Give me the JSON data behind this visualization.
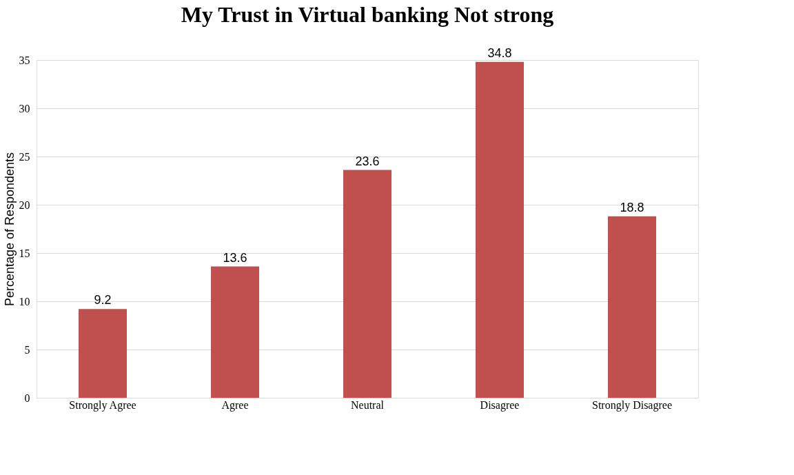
{
  "chart_data": {
    "type": "bar",
    "title": "My Trust in Virtual banking Not strong",
    "ylabel": "Percentage of Respondents",
    "categories": [
      "Strongly Agree",
      "Agree",
      "Neutral",
      "Disagree",
      "Strongly Disagree"
    ],
    "values": [
      9.2,
      13.6,
      23.6,
      34.8,
      18.8
    ],
    "color": "#c0504d",
    "ylim": [
      0,
      35
    ],
    "yticks": [
      0,
      5,
      10,
      15,
      20,
      25,
      30,
      35
    ],
    "grid": "y",
    "data_labels": true
  }
}
